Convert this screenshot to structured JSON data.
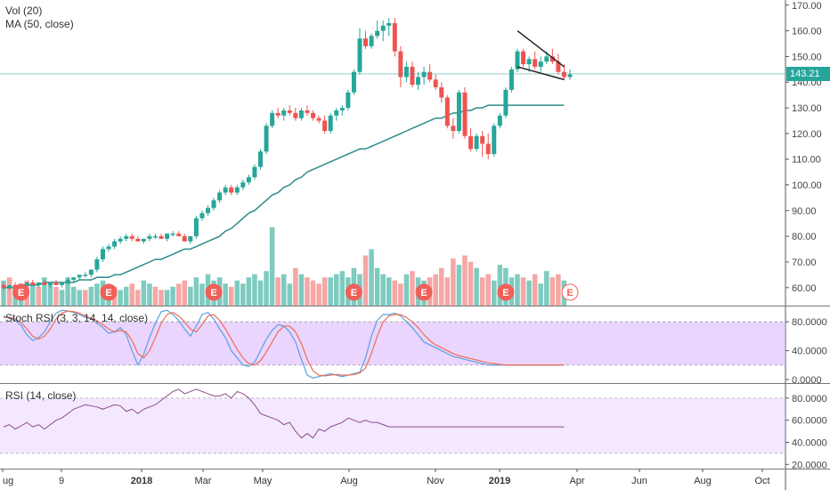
{
  "legends": {
    "vol": "Vol (20)",
    "ma": "MA (50, close)",
    "stoch": "Stoch RSI (3, 3, 14, 14, close)",
    "rsi": "RSI (14, close)"
  },
  "last_price": "143.21",
  "colors": {
    "up": "#26a69a",
    "down": "#ef5350",
    "up_fill": "#53b9ab",
    "down_fill": "#f08a87",
    "ma": "#2e8b8b",
    "stoch_k": "#5aa0e0",
    "stoch_d": "#ef6c55",
    "rsi": "#8e4a8e",
    "band": "#d9b3ff",
    "earnings": "#f06058"
  },
  "x_ticks": [
    "ug",
    "9",
    "2018",
    "Mar",
    "May",
    "Aug",
    "Nov",
    "2019",
    "Apr",
    "Jun",
    "Aug",
    "Oct"
  ],
  "x_ticks_bold": [
    "2018",
    "2019"
  ],
  "earnings_marker": "E",
  "chart_data": [
    {
      "type": "candlestick",
      "title": "",
      "y_ticks": [
        "170.00",
        "160.00",
        "150.00",
        "140.00",
        "130.00",
        "120.00",
        "110.00",
        "100.00",
        "90.00",
        "80.00",
        "70.00",
        "60.00"
      ],
      "ylim": [
        53,
        172
      ],
      "candles": [
        [
          61,
          62,
          59,
          60
        ],
        [
          60,
          61,
          59,
          61
        ],
        [
          61,
          62,
          60,
          60
        ],
        [
          60,
          61,
          59,
          61
        ],
        [
          61,
          62,
          60,
          62
        ],
        [
          62,
          63,
          61,
          61
        ],
        [
          61,
          62,
          60,
          62
        ],
        [
          62,
          63,
          61,
          61
        ],
        [
          61,
          62,
          60,
          62
        ],
        [
          62,
          63,
          61,
          61
        ],
        [
          61,
          62,
          60,
          62
        ],
        [
          62,
          64,
          61,
          63
        ],
        [
          63,
          64,
          62,
          64
        ],
        [
          64,
          65,
          63,
          65
        ],
        [
          65,
          66,
          64,
          65
        ],
        [
          65,
          67,
          64,
          67
        ],
        [
          67,
          72,
          66,
          71
        ],
        [
          71,
          76,
          70,
          75
        ],
        [
          75,
          77,
          74,
          76
        ],
        [
          76,
          79,
          75,
          78
        ],
        [
          78,
          80,
          77,
          79
        ],
        [
          79,
          81,
          78,
          80
        ],
        [
          80,
          81,
          78,
          79
        ],
        [
          79,
          80,
          78,
          78
        ],
        [
          78,
          79,
          77,
          79
        ],
        [
          79,
          81,
          78,
          80
        ],
        [
          80,
          81,
          79,
          80
        ],
        [
          80,
          81,
          79,
          79
        ],
        [
          79,
          81,
          78,
          81
        ],
        [
          81,
          82,
          80,
          81
        ],
        [
          81,
          82,
          80,
          80
        ],
        [
          80,
          81,
          78,
          78
        ],
        [
          78,
          80,
          77,
          80
        ],
        [
          80,
          88,
          79,
          87
        ],
        [
          87,
          90,
          86,
          89
        ],
        [
          89,
          92,
          88,
          91
        ],
        [
          91,
          95,
          90,
          94
        ],
        [
          94,
          98,
          93,
          97
        ],
        [
          97,
          100,
          96,
          99
        ],
        [
          99,
          100,
          96,
          97
        ],
        [
          97,
          100,
          96,
          99
        ],
        [
          99,
          102,
          98,
          101
        ],
        [
          101,
          104,
          100,
          103
        ],
        [
          103,
          108,
          102,
          107
        ],
        [
          107,
          114,
          106,
          113
        ],
        [
          113,
          124,
          112,
          123
        ],
        [
          123,
          129,
          122,
          128
        ],
        [
          128,
          130,
          126,
          127
        ],
        [
          127,
          130,
          125,
          129
        ],
        [
          129,
          131,
          127,
          128
        ],
        [
          128,
          130,
          125,
          126
        ],
        [
          126,
          130,
          125,
          129
        ],
        [
          129,
          131,
          127,
          128
        ],
        [
          128,
          129,
          125,
          126
        ],
        [
          126,
          127,
          124,
          125
        ],
        [
          125,
          127,
          120,
          121
        ],
        [
          121,
          128,
          120,
          127
        ],
        [
          127,
          130,
          125,
          129
        ],
        [
          129,
          131,
          127,
          130
        ],
        [
          130,
          137,
          129,
          136
        ],
        [
          136,
          145,
          135,
          144
        ],
        [
          144,
          161,
          143,
          157
        ],
        [
          157,
          160,
          153,
          154
        ],
        [
          154,
          159,
          153,
          158
        ],
        [
          158,
          164,
          157,
          160
        ],
        [
          160,
          164,
          156,
          162
        ],
        [
          162,
          165,
          158,
          163
        ],
        [
          163,
          165,
          150,
          152
        ],
        [
          152,
          154,
          138,
          142
        ],
        [
          142,
          148,
          140,
          146
        ],
        [
          146,
          148,
          138,
          139
        ],
        [
          139,
          144,
          137,
          142
        ],
        [
          142,
          146,
          139,
          144
        ],
        [
          144,
          147,
          140,
          141
        ],
        [
          141,
          143,
          137,
          138
        ],
        [
          138,
          140,
          132,
          134
        ],
        [
          134,
          135,
          122,
          123
        ],
        [
          123,
          126,
          118,
          121
        ],
        [
          121,
          137,
          120,
          136
        ],
        [
          136,
          138,
          118,
          119
        ],
        [
          119,
          122,
          113,
          114
        ],
        [
          114,
          120,
          113,
          119
        ],
        [
          119,
          121,
          111,
          116
        ],
        [
          116,
          120,
          110,
          112
        ],
        [
          112,
          124,
          111,
          123
        ],
        [
          123,
          128,
          122,
          127
        ],
        [
          127,
          138,
          126,
          137
        ],
        [
          137,
          146,
          136,
          145
        ],
        [
          145,
          153,
          144,
          152
        ],
        [
          152,
          153,
          146,
          147
        ],
        [
          147,
          150,
          144,
          149
        ],
        [
          149,
          152,
          145,
          146
        ],
        [
          146,
          150,
          144,
          148
        ],
        [
          148,
          152,
          147,
          150
        ],
        [
          150,
          153,
          147,
          148
        ],
        [
          148,
          151,
          143,
          144
        ],
        [
          144,
          147,
          141,
          142
        ],
        [
          142,
          145,
          141,
          143
        ]
      ],
      "ma50": [
        60,
        60,
        60,
        61,
        61,
        61,
        61,
        62,
        62,
        62,
        62,
        62,
        62,
        63,
        63,
        63,
        64,
        64,
        64,
        65,
        65,
        66,
        67,
        68,
        69,
        70,
        71,
        71,
        72,
        73,
        74,
        75,
        75,
        76,
        77,
        78,
        79,
        80,
        82,
        83,
        85,
        87,
        89,
        90,
        92,
        94,
        96,
        97,
        99,
        100,
        102,
        103,
        105,
        106,
        107,
        108,
        109,
        110,
        111,
        112,
        113,
        114,
        114,
        115,
        116,
        117,
        118,
        119,
        120,
        121,
        122,
        123,
        124,
        125,
        126,
        126,
        127,
        128,
        128,
        129,
        129,
        130,
        130,
        131,
        131,
        131,
        131,
        131,
        131,
        131,
        131,
        131,
        131,
        131,
        131,
        131,
        131
      ],
      "volume": [
        8,
        9,
        6,
        7,
        8,
        7,
        6,
        9,
        7,
        6,
        5,
        9,
        6,
        5,
        5,
        6,
        7,
        8,
        5,
        6,
        5,
        6,
        7,
        5,
        8,
        7,
        6,
        5,
        5,
        6,
        7,
        8,
        6,
        9,
        7,
        10,
        8,
        9,
        7,
        6,
        8,
        7,
        9,
        10,
        8,
        11,
        25,
        9,
        10,
        7,
        12,
        10,
        9,
        8,
        7,
        9,
        9,
        10,
        11,
        9,
        12,
        10,
        16,
        18,
        12,
        10,
        9,
        8,
        7,
        10,
        11,
        9,
        8,
        9,
        10,
        12,
        9,
        15,
        13,
        16,
        14,
        12,
        9,
        10,
        8,
        13,
        12,
        9,
        10,
        9,
        8,
        10,
        7,
        11,
        9,
        10,
        8
      ],
      "volume_up": [
        true,
        false,
        true,
        true,
        false,
        true,
        false,
        true,
        true,
        false,
        true,
        true,
        true,
        true,
        false,
        true,
        true,
        true,
        true,
        false,
        true,
        true,
        false,
        false,
        true,
        true,
        false,
        false,
        true,
        true,
        false,
        false,
        true,
        true,
        true,
        true,
        true,
        true,
        true,
        false,
        true,
        true,
        true,
        true,
        true,
        true,
        true,
        false,
        true,
        true,
        false,
        true,
        false,
        false,
        false,
        false,
        true,
        true,
        true,
        true,
        true,
        true,
        false,
        true,
        true,
        true,
        true,
        false,
        false,
        true,
        false,
        true,
        true,
        false,
        false,
        false,
        false,
        false,
        true,
        false,
        false,
        true,
        false,
        false,
        true,
        true,
        true,
        true,
        true,
        false,
        true,
        false,
        true,
        true,
        false,
        false,
        true
      ],
      "trendline_upper": {
        "from": [
          88,
          160
        ],
        "to": [
          96,
          146
        ]
      },
      "trendline_lower": {
        "from": [
          88,
          146
        ],
        "to": [
          96,
          141
        ]
      },
      "earnings_at": [
        3,
        18,
        36,
        60,
        72,
        86,
        97
      ]
    },
    {
      "type": "line",
      "title": "Stoch RSI (3, 3, 14, 14, close)",
      "y_ticks": [
        "80.0000",
        "40.0000",
        "0.0000"
      ],
      "ylim": [
        -5,
        100
      ],
      "band": [
        20,
        80
      ],
      "series": [
        {
          "name": "K",
          "values": [
            88,
            85,
            82,
            75,
            62,
            54,
            58,
            66,
            80,
            92,
            96,
            95,
            93,
            90,
            86,
            84,
            78,
            72,
            64,
            66,
            72,
            62,
            40,
            20,
            35,
            58,
            78,
            94,
            96,
            90,
            82,
            70,
            60,
            74,
            90,
            93,
            84,
            70,
            58,
            40,
            30,
            20,
            18,
            24,
            40,
            56,
            68,
            76,
            74,
            66,
            52,
            28,
            6,
            2,
            4,
            6,
            8,
            6,
            4,
            6,
            8,
            10,
            30,
            60,
            82,
            90,
            90,
            92,
            88,
            80,
            72,
            62,
            52,
            48,
            44,
            40,
            36,
            32,
            30,
            28,
            26,
            24,
            22,
            20,
            20,
            20,
            20,
            20,
            20,
            20,
            20,
            20,
            20,
            20,
            20,
            20,
            20
          ]
        },
        {
          "name": "D",
          "values": [
            86,
            86,
            84,
            79,
            70,
            60,
            56,
            60,
            70,
            84,
            92,
            95,
            94,
            92,
            88,
            85,
            81,
            76,
            70,
            66,
            68,
            66,
            54,
            36,
            30,
            40,
            58,
            78,
            90,
            93,
            88,
            80,
            70,
            66,
            76,
            88,
            90,
            82,
            70,
            56,
            42,
            30,
            22,
            20,
            26,
            38,
            52,
            66,
            74,
            74,
            66,
            50,
            28,
            12,
            6,
            5,
            6,
            7,
            6,
            6,
            7,
            9,
            16,
            36,
            60,
            80,
            88,
            90,
            90,
            86,
            80,
            72,
            62,
            54,
            48,
            44,
            40,
            36,
            33,
            31,
            29,
            27,
            25,
            23,
            22,
            21,
            20,
            20,
            20,
            20,
            20,
            20,
            20,
            20,
            20,
            20,
            20
          ]
        }
      ]
    },
    {
      "type": "line",
      "title": "RSI (14, close)",
      "y_ticks": [
        "80.0000",
        "60.0000",
        "40.0000",
        "20.0000"
      ],
      "ylim": [
        17,
        92
      ],
      "band": [
        30,
        80
      ],
      "series": [
        {
          "name": "RSI",
          "values": [
            54,
            56,
            52,
            55,
            58,
            54,
            56,
            52,
            56,
            60,
            62,
            66,
            70,
            72,
            74,
            73,
            72,
            70,
            72,
            74,
            73,
            68,
            70,
            66,
            70,
            72,
            74,
            78,
            82,
            86,
            88,
            84,
            86,
            88,
            86,
            84,
            82,
            82,
            84,
            80,
            86,
            84,
            80,
            74,
            66,
            64,
            62,
            60,
            56,
            58,
            50,
            44,
            48,
            44,
            52,
            50,
            54,
            56,
            58,
            62,
            60,
            58,
            60,
            58,
            58,
            56,
            54,
            54,
            54,
            54,
            54,
            54,
            54,
            54,
            54,
            54,
            54,
            54,
            54,
            54,
            54,
            54,
            54,
            54,
            54,
            54,
            54,
            54,
            54,
            54,
            54,
            54,
            54,
            54,
            54,
            54,
            54
          ]
        }
      ]
    }
  ]
}
